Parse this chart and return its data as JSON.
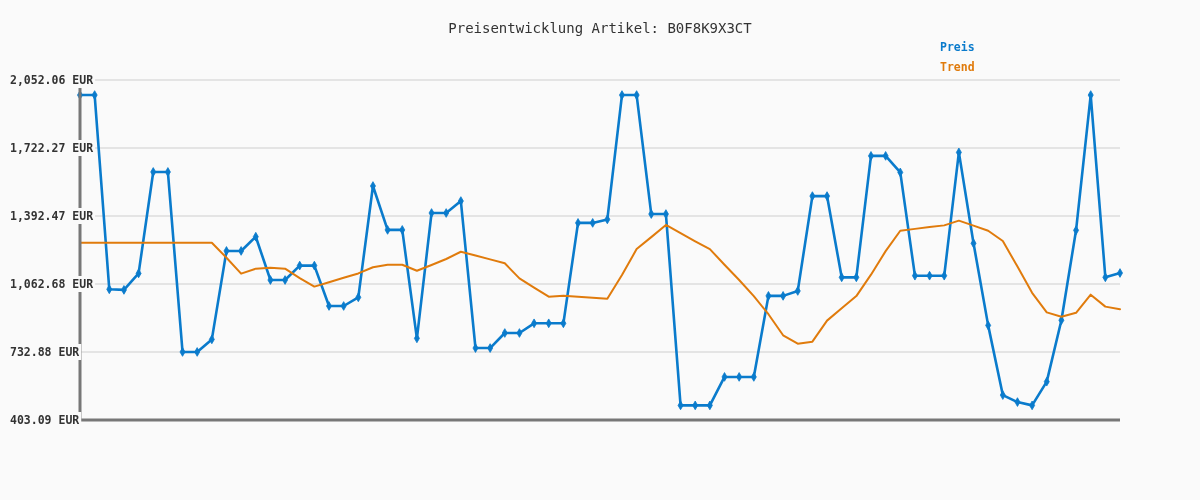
{
  "chart_data": {
    "type": "line",
    "title": "Preisentwicklung Artikel: B0F8K9X3CT",
    "categories": [
      null,
      null,
      null,
      null,
      null,
      null,
      null,
      null,
      null,
      null,
      null,
      null,
      null,
      null,
      null,
      null,
      null,
      null,
      null,
      null,
      null,
      null,
      null,
      null,
      null,
      null,
      null,
      null,
      null,
      null,
      null,
      null,
      null,
      null,
      null,
      null,
      null,
      null,
      null,
      null,
      null,
      null,
      null,
      null,
      null,
      null,
      null,
      null,
      null,
      null,
      null,
      null,
      null,
      null,
      null,
      null,
      null,
      null,
      null,
      null,
      null,
      null,
      null,
      null,
      null,
      null,
      null,
      null,
      null,
      null,
      null,
      null
    ],
    "series": [
      {
        "name": "Preis",
        "color": "#0a7bcc",
        "marker": "diamond",
        "values": [
          1979,
          1979,
          1037,
          1034,
          1114,
          1606,
          1606,
          733,
          733,
          794,
          1223,
          1223,
          1292,
          1082,
          1082,
          1152,
          1152,
          956,
          956,
          998,
          1538,
          1325,
          1325,
          799,
          1407,
          1407,
          1465,
          752,
          752,
          825,
          825,
          872,
          872,
          872,
          1359,
          1359,
          1376,
          1979,
          1979,
          1402,
          1402,
          474,
          474,
          474,
          612,
          612,
          612,
          1005,
          1005,
          1029,
          1489,
          1489,
          1095,
          1095,
          1684,
          1684,
          1604,
          1103,
          1103,
          1103,
          1701,
          1260,
          862,
          524,
          490,
          474,
          589,
          887,
          1323,
          1979,
          1095,
          1116
        ]
      },
      {
        "name": "Trend",
        "color": "#e07b0c",
        "marker": "none",
        "values": [
          1263,
          1263,
          1263,
          1263,
          1263,
          1263,
          1263,
          1263,
          1263,
          1263,
          1190,
          1113,
          1137,
          1142,
          1137,
          1091,
          1050,
          1071,
          1093,
          1114,
          1144,
          1156,
          1156,
          1127,
          1155,
          1184,
          1219,
          1201,
          1182,
          1163,
          1090,
          1045,
          1001,
          1006,
          1001,
          996,
          991,
          1106,
          1232,
          1290,
          1349,
          1309,
          1270,
          1232,
          1156,
          1082,
          1004,
          916,
          814,
          773,
          783,
          885,
          945,
          1004,
          1108,
          1222,
          1321,
          1330,
          1339,
          1347,
          1370,
          1346,
          1321,
          1271,
          1147,
          1020,
          925,
          904,
          923,
          1011,
          953,
          940
        ]
      }
    ],
    "ylim": [
      403.09,
      2052.06
    ],
    "yticks": [
      {
        "value": 403.09,
        "label": "403.09 EUR"
      },
      {
        "value": 732.88,
        "label": "732.88 EUR"
      },
      {
        "value": 1062.68,
        "label": "1,062.68 EUR"
      },
      {
        "value": 1392.47,
        "label": "1,392.47 EUR"
      },
      {
        "value": 1722.27,
        "label": "1,722.27 EUR"
      },
      {
        "value": 2052.06,
        "label": "2,052.06 EUR"
      }
    ],
    "grid": "y",
    "legend": "top right"
  }
}
